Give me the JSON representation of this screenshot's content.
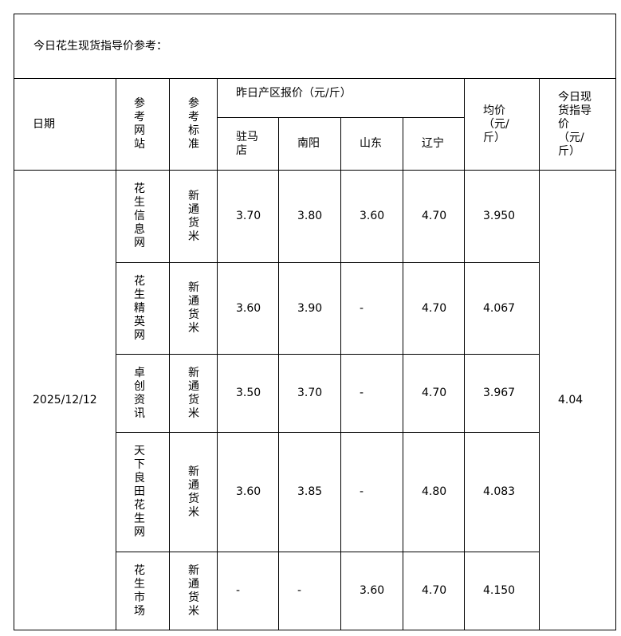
{
  "title": "今日花生现货指导价参考：",
  "headers": {
    "date": "日期",
    "site": "参考网站",
    "standard": "参考标准",
    "yesterday": "昨日产区报价（元/斤）",
    "regions": [
      "驻马店",
      "南阳",
      "山东",
      "辽宁"
    ],
    "avg": "均价（元/斤）",
    "guide": "今日现货指导价（元/斤）"
  },
  "date": "2025/12/12",
  "guide_price": "4.04",
  "rows": [
    {
      "site": "花生信息网",
      "standard": "新通货米",
      "zmd": "3.70",
      "ny": "3.80",
      "sd": "3.60",
      "ln": "4.70",
      "avg": "3.950"
    },
    {
      "site": "花生精英网",
      "standard": "新通货米",
      "zmd": "3.60",
      "ny": "3.90",
      "sd": "-",
      "ln": "4.70",
      "avg": "4.067"
    },
    {
      "site": "卓创资讯",
      "standard": "新通货米",
      "zmd": "3.50",
      "ny": "3.70",
      "sd": "-",
      "ln": "4.70",
      "avg": "3.967"
    },
    {
      "site": "天下良田花生网",
      "standard": "新通货米",
      "zmd": "3.60",
      "ny": "3.85",
      "sd": "-",
      "ln": "4.80",
      "avg": "4.083"
    },
    {
      "site": "花生市场",
      "standard": "新通货米",
      "zmd": "-",
      "ny": "-",
      "sd": "3.60",
      "ln": "4.70",
      "avg": "4.150"
    }
  ]
}
